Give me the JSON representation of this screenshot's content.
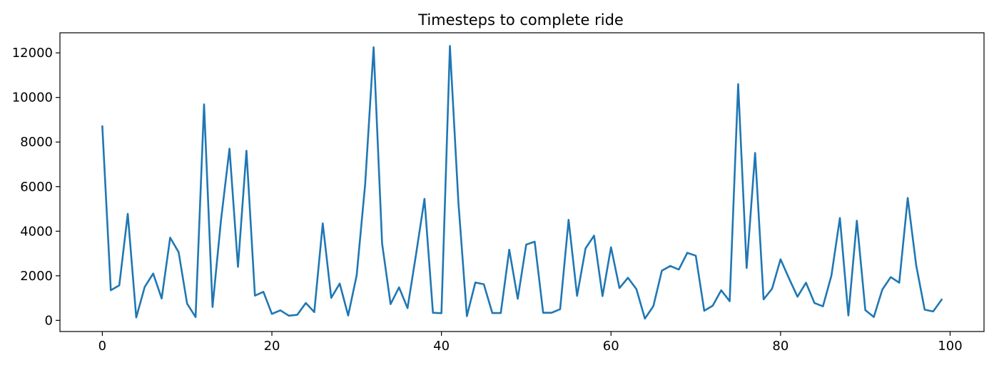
{
  "chart_data": {
    "type": "line",
    "title": "Timesteps to complete ride",
    "xlabel": "",
    "ylabel": "",
    "xlim": [
      -5,
      104
    ],
    "ylim": [
      -500,
      12900
    ],
    "xticks": [
      0,
      20,
      40,
      60,
      80,
      100
    ],
    "xtick_labels": [
      "0",
      "20",
      "40",
      "60",
      "80",
      "100"
    ],
    "yticks": [
      0,
      2000,
      4000,
      6000,
      8000,
      10000,
      12000
    ],
    "ytick_labels": [
      "0",
      "2000",
      "4000",
      "6000",
      "8000",
      "10000",
      "12000"
    ],
    "grid": false,
    "legend": "none",
    "series": [
      {
        "color": "#1f77b4",
        "x": [
          0,
          1,
          2,
          3,
          4,
          5,
          6,
          7,
          8,
          9,
          10,
          11,
          12,
          13,
          14,
          15,
          16,
          17,
          18,
          19,
          20,
          21,
          22,
          23,
          24,
          25,
          26,
          27,
          28,
          29,
          30,
          31,
          32,
          33,
          34,
          35,
          36,
          37,
          38,
          39,
          40,
          41,
          42,
          43,
          44,
          45,
          46,
          47,
          48,
          49,
          50,
          51,
          52,
          53,
          54,
          55,
          56,
          57,
          58,
          59,
          60,
          61,
          62,
          63,
          64,
          65,
          66,
          67,
          68,
          69,
          70,
          71,
          72,
          73,
          74,
          75,
          76,
          77,
          78,
          79,
          80,
          81,
          82,
          83,
          84,
          85,
          86,
          87,
          88,
          89,
          90,
          91,
          92,
          93,
          94,
          95,
          96,
          97,
          98,
          99
        ],
        "y": [
          8700,
          1350,
          1570,
          4780,
          130,
          1500,
          2100,
          980,
          3710,
          3060,
          750,
          150,
          9690,
          600,
          4500,
          7700,
          2400,
          7610,
          1110,
          1280,
          290,
          450,
          210,
          250,
          780,
          370,
          4350,
          1010,
          1650,
          220,
          2020,
          6100,
          12250,
          3450,
          730,
          1480,
          550,
          2950,
          5450,
          340,
          320,
          12310,
          5300,
          190,
          1700,
          1620,
          330,
          330,
          3170,
          970,
          3400,
          3530,
          340,
          340,
          500,
          4510,
          1100,
          3230,
          3800,
          1090,
          3280,
          1450,
          1910,
          1400,
          80,
          640,
          2230,
          2440,
          2280,
          3030,
          2900,
          430,
          660,
          1350,
          860,
          10600,
          2350,
          7510,
          940,
          1420,
          2740,
          1880,
          1060,
          1690,
          780,
          630,
          2010,
          4590,
          220,
          4470,
          460,
          150,
          1380,
          1940,
          1690,
          5490,
          2470,
          480,
          400,
          930
        ]
      }
    ]
  }
}
